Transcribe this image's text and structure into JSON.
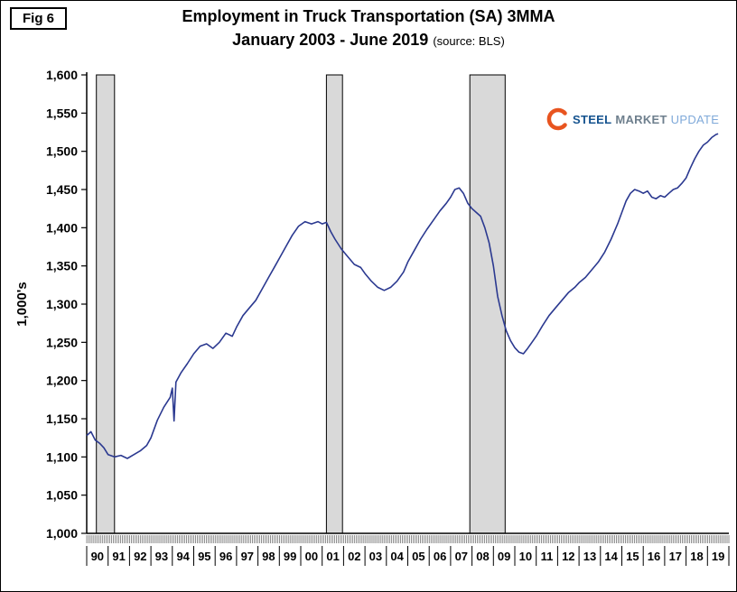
{
  "figure_label": "Fig 6",
  "title_line1": "Employment in Truck Transportation (SA) 3MMA",
  "title_line2": "January 2003 - June 2019",
  "title_source": "(source: BLS)",
  "logo": {
    "steel": "STEEL",
    "market": "MARKET",
    "update": "UPDATE"
  },
  "colors": {
    "line": "#2b3990",
    "recession_fill": "#d9d9d9",
    "recession_border": "#000000",
    "axis": "#000000",
    "logo_steel": "#15538f",
    "logo_market": "#6e7f8d",
    "logo_update": "#7fa9d9",
    "logo_arc": "#e8541f"
  },
  "chart_data": {
    "type": "line",
    "title": "Employment in Truck Transportation (SA) 3MMA",
    "subtitle": "January 2003 - June 2019 (source: BLS)",
    "ylabel": "1,000's",
    "ylim": [
      1000,
      1600
    ],
    "xlim": [
      1990,
      2020
    ],
    "grid": false,
    "legend": "none",
    "y_ticks": [
      1000,
      1050,
      1100,
      1150,
      1200,
      1250,
      1300,
      1350,
      1400,
      1450,
      1500,
      1550,
      1600
    ],
    "y_tick_labels": [
      "1,000",
      "1,050",
      "1,100",
      "1,150",
      "1,200",
      "1,250",
      "1,300",
      "1,350",
      "1,400",
      "1,450",
      "1,500",
      "1,550",
      "1,600"
    ],
    "x_tick_labels": [
      "90",
      "91",
      "92",
      "93",
      "94",
      "95",
      "96",
      "97",
      "98",
      "99",
      "00",
      "01",
      "02",
      "03",
      "04",
      "05",
      "06",
      "07",
      "08",
      "09",
      "10",
      "11",
      "12",
      "13",
      "14",
      "15",
      "16",
      "17",
      "18",
      "19"
    ],
    "recession_bands": [
      [
        1990.45,
        1991.3
      ],
      [
        2001.2,
        2001.95
      ],
      [
        2007.9,
        2009.55
      ]
    ],
    "series": [
      {
        "name": "Employment in Truck Transportation (1,000's, SA, 3MMA)",
        "x": [
          1990.0,
          1990.2,
          1990.4,
          1990.6,
          1990.8,
          1991.0,
          1991.3,
          1991.6,
          1991.9,
          1992.2,
          1992.5,
          1992.8,
          1993.0,
          1993.3,
          1993.6,
          1993.9,
          1994.0,
          1994.08,
          1994.17,
          1994.4,
          1994.7,
          1995.0,
          1995.3,
          1995.6,
          1995.9,
          1996.2,
          1996.5,
          1996.8,
          1997.0,
          1997.3,
          1997.6,
          1997.9,
          1998.2,
          1998.5,
          1998.8,
          1999.0,
          1999.3,
          1999.6,
          1999.9,
          2000.2,
          2000.5,
          2000.8,
          2001.0,
          2001.2,
          2001.4,
          2001.6,
          2001.9,
          2002.2,
          2002.5,
          2002.8,
          2003.0,
          2003.3,
          2003.6,
          2003.9,
          2004.2,
          2004.5,
          2004.8,
          2005.0,
          2005.3,
          2005.6,
          2005.9,
          2006.2,
          2006.5,
          2006.8,
          2007.0,
          2007.2,
          2007.4,
          2007.6,
          2007.8,
          2008.0,
          2008.2,
          2008.4,
          2008.6,
          2008.8,
          2009.0,
          2009.2,
          2009.4,
          2009.6,
          2009.8,
          2010.0,
          2010.2,
          2010.4,
          2010.6,
          2010.8,
          2011.0,
          2011.3,
          2011.6,
          2011.9,
          2012.2,
          2012.5,
          2012.8,
          2013.0,
          2013.3,
          2013.6,
          2013.9,
          2014.2,
          2014.5,
          2014.8,
          2015.0,
          2015.2,
          2015.4,
          2015.6,
          2015.8,
          2016.0,
          2016.2,
          2016.4,
          2016.6,
          2016.8,
          2017.0,
          2017.2,
          2017.4,
          2017.6,
          2017.8,
          2018.0,
          2018.2,
          2018.4,
          2018.6,
          2018.8,
          2019.0,
          2019.2,
          2019.4,
          2019.5
        ],
        "y": [
          1128,
          1133,
          1122,
          1118,
          1112,
          1103,
          1100,
          1102,
          1098,
          1103,
          1108,
          1115,
          1125,
          1148,
          1165,
          1178,
          1190,
          1147,
          1198,
          1210,
          1222,
          1235,
          1245,
          1248,
          1242,
          1250,
          1262,
          1258,
          1270,
          1285,
          1295,
          1305,
          1320,
          1335,
          1350,
          1360,
          1375,
          1390,
          1402,
          1408,
          1405,
          1408,
          1405,
          1407,
          1395,
          1385,
          1372,
          1362,
          1352,
          1348,
          1340,
          1330,
          1322,
          1318,
          1322,
          1330,
          1342,
          1355,
          1370,
          1385,
          1398,
          1410,
          1422,
          1432,
          1440,
          1450,
          1452,
          1445,
          1432,
          1425,
          1420,
          1415,
          1400,
          1380,
          1350,
          1310,
          1285,
          1265,
          1252,
          1243,
          1237,
          1235,
          1242,
          1250,
          1258,
          1272,
          1285,
          1295,
          1305,
          1315,
          1322,
          1328,
          1335,
          1345,
          1355,
          1368,
          1385,
          1405,
          1420,
          1435,
          1445,
          1450,
          1448,
          1445,
          1448,
          1440,
          1438,
          1442,
          1440,
          1445,
          1450,
          1452,
          1458,
          1465,
          1478,
          1490,
          1500,
          1508,
          1512,
          1518,
          1522,
          1523
        ]
      }
    ]
  }
}
